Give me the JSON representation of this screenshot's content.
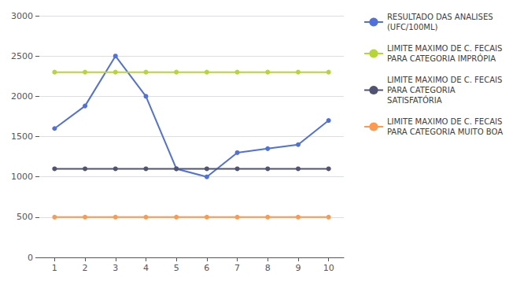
{
  "chart_data": {
    "type": "line",
    "x": [
      1,
      2,
      3,
      4,
      5,
      6,
      7,
      8,
      9,
      10
    ],
    "series": [
      {
        "name": "RESULTADO DAS ANALISES\n(UFC/100ML)",
        "marker": "circle",
        "values": [
          1600,
          1880,
          2500,
          2000,
          1100,
          1000,
          1300,
          1350,
          1400,
          1700
        ]
      },
      {
        "name": "LIMITE MAXIMO DE C. FECAIS\nPARA CATEGORIA IMPRÓPIA",
        "marker": "circle",
        "values": [
          2300,
          2300,
          2300,
          2300,
          2300,
          2300,
          2300,
          2300,
          2300,
          2300
        ]
      },
      {
        "name": "LIMITE MAXIMO DE C. FECAIS\nPARA CATEGORIA\nSATISFATÓRIA",
        "marker": "circle",
        "values": [
          1100,
          1100,
          1100,
          1100,
          1100,
          1100,
          1100,
          1100,
          1100,
          1100
        ]
      },
      {
        "name": "LIMITE MAXIMO DE C. FECAIS\nPARA CATEGORIA MUITO BOA",
        "marker": "circle",
        "values": [
          500,
          500,
          500,
          500,
          500,
          500,
          500,
          500,
          500,
          500
        ]
      }
    ],
    "xlim": [
      0.5,
      10.5
    ],
    "xticks": [
      1,
      2,
      3,
      4,
      5,
      6,
      7,
      8,
      9,
      10
    ],
    "ylim": [
      0,
      3000
    ],
    "yticks": [
      0,
      500,
      1000,
      1500,
      2000,
      2500,
      3000
    ],
    "grid": true,
    "legend": "right"
  }
}
